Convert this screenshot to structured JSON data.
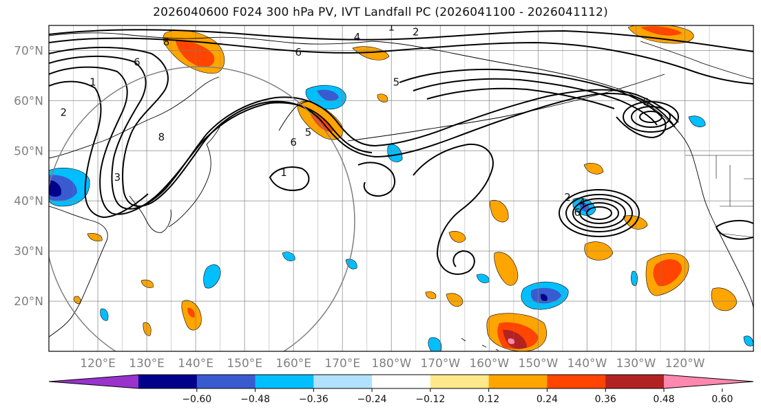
{
  "title": "2026040600 F024 300 hPa PV, IVT Landfall PC (2026041100 - 2026041112)",
  "map": {
    "lat_labels": [
      "70°N",
      "60°N",
      "50°N",
      "40°N",
      "30°N",
      "20°N"
    ],
    "lat_values": [
      70,
      60,
      50,
      40,
      30,
      20
    ],
    "lon_labels": [
      "120°E",
      "130°E",
      "140°E",
      "150°E",
      "160°E",
      "170°E",
      "180°W",
      "170°W",
      "160°W",
      "150°W",
      "140°W",
      "130°W",
      "120°W"
    ],
    "lon_values": [
      120,
      130,
      140,
      150,
      160,
      170,
      180,
      190,
      200,
      210,
      220,
      230,
      240
    ],
    "extent": {
      "lon_min": 110,
      "lon_max": 254,
      "lat_min": 10,
      "lat_max": 75
    }
  },
  "colorbar": {
    "ticks": [
      "−0.60",
      "−0.48",
      "−0.36",
      "−0.24",
      "−0.12",
      "0.12",
      "0.24",
      "0.36",
      "0.48",
      "0.60"
    ],
    "colors": [
      "#9933cc",
      "#00008b",
      "#3a5bcf",
      "#00bfff",
      "#b0e2ff",
      "#ffffff",
      "#ffe98a",
      "#ffa500",
      "#ff4500",
      "#b22222",
      "#ff88b0"
    ],
    "extend": "both"
  },
  "contour_labels": [
    {
      "text": "1",
      "lon": 180,
      "lat": 74
    },
    {
      "text": "2",
      "lon": 185,
      "lat": 73
    },
    {
      "text": "4",
      "lon": 173,
      "lat": 72
    },
    {
      "text": "6",
      "lon": 161,
      "lat": 69
    },
    {
      "text": "5",
      "lon": 181,
      "lat": 63
    },
    {
      "text": "6",
      "lon": 232,
      "lat": 59
    },
    {
      "text": "6",
      "lon": 128,
      "lat": 67
    },
    {
      "text": "8",
      "lon": 134,
      "lat": 71
    },
    {
      "text": "1",
      "lon": 119,
      "lat": 63
    },
    {
      "text": "2",
      "lon": 113,
      "lat": 57
    },
    {
      "text": "5",
      "lon": 163,
      "lat": 53
    },
    {
      "text": "6",
      "lon": 160,
      "lat": 51
    },
    {
      "text": "1",
      "lon": 158,
      "lat": 45
    },
    {
      "text": "4",
      "lon": 219,
      "lat": 39
    },
    {
      "text": "2",
      "lon": 216,
      "lat": 40
    },
    {
      "text": "6",
      "lon": 218,
      "lat": 37
    },
    {
      "text": "8",
      "lon": 133,
      "lat": 52
    },
    {
      "text": "3",
      "lon": 124,
      "lat": 44
    }
  ]
}
